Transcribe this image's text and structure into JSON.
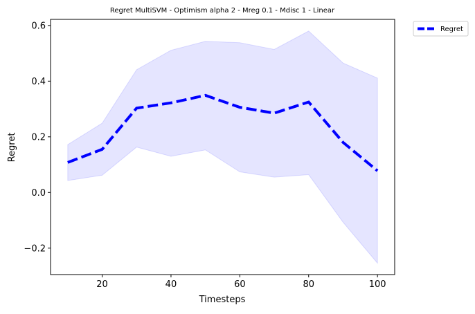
{
  "chart_data": {
    "type": "line",
    "title": "Regret MultiSVM - Optimism alpha 2 - Mreg 0.1 - Mdisc 1 - Linear",
    "xlabel": "Timesteps",
    "ylabel": "Regret",
    "xlim": [
      5,
      105
    ],
    "ylim": [
      -0.295,
      0.622
    ],
    "x_ticks": [
      20,
      40,
      60,
      80,
      100
    ],
    "y_ticks": [
      -0.2,
      0.0,
      0.2,
      0.4,
      0.6
    ],
    "x_tick_labels": [
      "20",
      "40",
      "60",
      "80",
      "100"
    ],
    "y_tick_labels": [
      "−0.2",
      "0.0",
      "0.2",
      "0.4",
      "0.6"
    ],
    "grid": false,
    "legend_position": "outside-top-right",
    "x": [
      10,
      20,
      30,
      40,
      50,
      60,
      70,
      80,
      90,
      100
    ],
    "series": [
      {
        "name": "Regret",
        "values": [
          0.108,
          0.155,
          0.303,
          0.322,
          0.349,
          0.306,
          0.285,
          0.325,
          0.18,
          0.078
        ],
        "color": "#0000ff",
        "line_style": "dashed"
      }
    ],
    "band": {
      "lower": [
        0.043,
        0.062,
        0.163,
        0.13,
        0.153,
        0.074,
        0.055,
        0.064,
        -0.107,
        -0.254
      ],
      "upper": [
        0.172,
        0.249,
        0.441,
        0.511,
        0.543,
        0.538,
        0.514,
        0.58,
        0.465,
        0.411
      ],
      "color": "#0000ff",
      "opacity": 0.1
    }
  }
}
